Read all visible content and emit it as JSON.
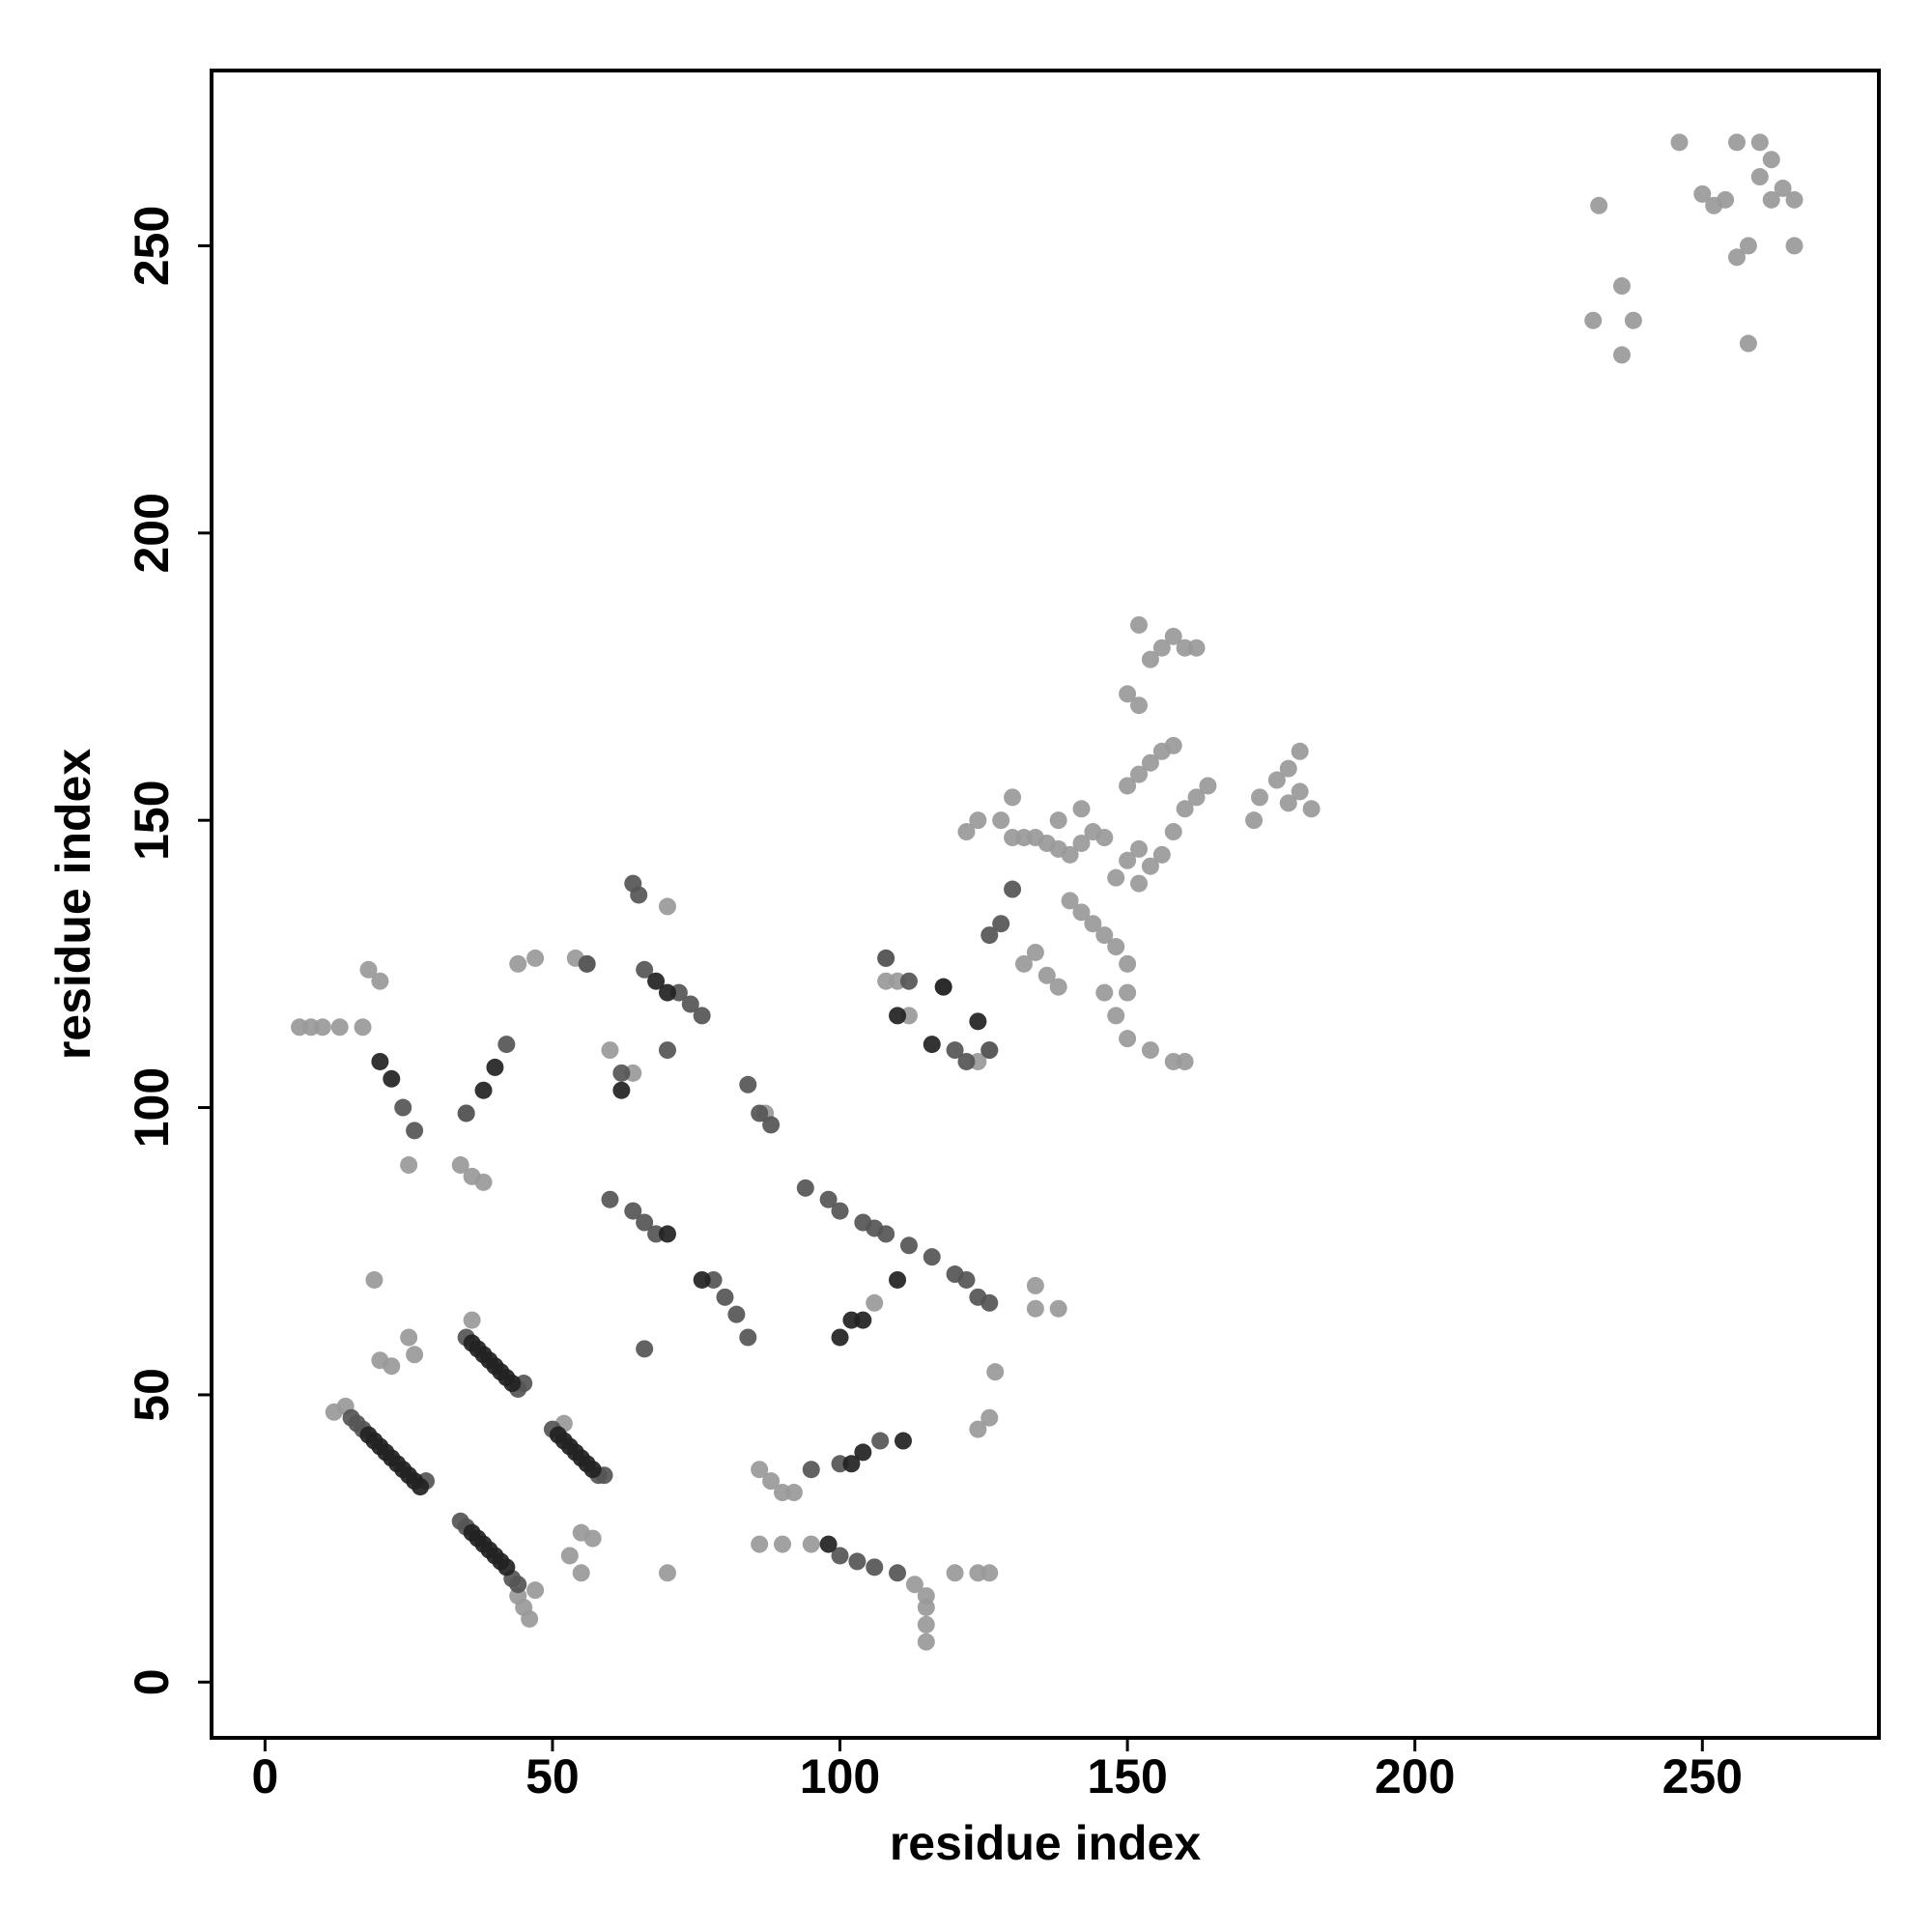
{
  "chart_data": {
    "type": "scatter",
    "x_label": "residue index",
    "y_label": "residue index",
    "xlim": [
      -9.3,
      280.7
    ],
    "ylim": [
      -9.7,
      280.5
    ],
    "xticks": [
      0,
      50,
      100,
      150,
      200,
      250
    ],
    "yticks": [
      0,
      50,
      100,
      150,
      200,
      250
    ],
    "series": [
      {
        "color": "#999999",
        "x": [
          12,
          14,
          44,
          45,
          46,
          47,
          52,
          6,
          8,
          10,
          13,
          17,
          18,
          20,
          25,
          35,
          36,
          38,
          34,
          44,
          47,
          54,
          56,
          60,
          64,
          70,
          25,
          20,
          22,
          26,
          19,
          36,
          53,
          55,
          57,
          55,
          70,
          108,
          106,
          86,
          88,
          90,
          92,
          86,
          90,
          87,
          95,
          113,
          115,
          115,
          115,
          115,
          120,
          124,
          126,
          127,
          124,
          126,
          134,
          134,
          138,
          108,
          110,
          112,
          118,
          126,
          124,
          122,
          124,
          128,
          130,
          132,
          134,
          136,
          138,
          140,
          142,
          144,
          146,
          132,
          134,
          136,
          138,
          140,
          142,
          144,
          146,
          148,
          146,
          148,
          150,
          150,
          152,
          154,
          156,
          158,
          160,
          162,
          164,
          150,
          152,
          154,
          156,
          158,
          150,
          152,
          154,
          156,
          158,
          160,
          162,
          152,
          148,
          150,
          152,
          130,
          138,
          142,
          150,
          154,
          158,
          160,
          172,
          173,
          176,
          178,
          180,
          182,
          178,
          180,
          231,
          232,
          236,
          236,
          238,
          246,
          250,
          252,
          254,
          256,
          258,
          260,
          262,
          262,
          264,
          266,
          266,
          258,
          256,
          260
        ],
        "y": [
          47,
          48,
          15,
          13,
          11,
          16,
          45,
          114,
          114,
          114,
          114,
          114,
          124,
          122,
          90,
          99,
          88,
          87,
          90,
          125,
          126,
          126,
          125,
          110,
          106,
          135,
          60,
          56,
          55,
          57,
          70,
          63,
          22,
          26,
          25,
          19,
          19,
          122,
          66,
          37,
          35,
          33,
          33,
          24,
          24,
          99,
          24,
          17,
          13,
          10,
          7,
          15,
          19,
          44,
          46,
          54,
          19,
          19,
          69,
          65,
          65,
          126,
          122,
          116,
          121,
          110,
          108,
          148,
          150,
          150,
          147,
          147,
          147,
          146,
          145,
          144,
          146,
          148,
          147,
          125,
          127,
          123,
          121,
          136,
          134,
          132,
          130,
          128,
          120,
          116,
          120,
          125,
          139,
          142,
          144,
          148,
          152,
          154,
          156,
          156,
          158,
          160,
          162,
          163,
          172,
          170,
          178,
          180,
          182,
          180,
          180,
          184,
          140,
          143,
          145,
          154,
          150,
          152,
          112,
          110,
          108,
          108,
          150,
          154,
          157,
          159,
          155,
          152,
          153,
          162,
          237,
          257,
          243,
          231,
          237,
          268,
          259,
          257,
          258,
          248,
          250,
          262,
          265,
          258,
          260,
          258,
          250,
          233,
          268,
          268
        ]
      },
      {
        "color": "#555555",
        "x": [
          15,
          16,
          17,
          28,
          34,
          35,
          43,
          44,
          35,
          44,
          45,
          50,
          58,
          59,
          66,
          72,
          74,
          76,
          84,
          86,
          88,
          94,
          98,
          100,
          104,
          106,
          108,
          112,
          116,
          120,
          122,
          124,
          126,
          60,
          64,
          66,
          68,
          78,
          80,
          82,
          84,
          95,
          100,
          107,
          100,
          103,
          106,
          110,
          24,
          26,
          35,
          42,
          56,
          66,
          108,
          112,
          120,
          122,
          126,
          64,
          65,
          70,
          62,
          130,
          128,
          126
        ],
        "y": [
          46,
          45,
          44,
          35,
          28,
          27,
          18,
          17,
          60,
          51,
          52,
          44,
          36,
          36,
          124,
          120,
          118,
          116,
          104,
          99,
          97,
          86,
          84,
          82,
          80,
          79,
          78,
          76,
          74,
          71,
          70,
          67,
          66,
          84,
          82,
          80,
          78,
          70,
          67,
          64,
          60,
          37,
          38,
          42,
          22,
          21,
          20,
          19,
          100,
          96,
          99,
          111,
          125,
          58,
          126,
          122,
          110,
          108,
          110,
          139,
          137,
          110,
          106,
          138,
          132,
          130
        ]
      },
      {
        "color": "#222222",
        "x": [
          18,
          19,
          20,
          21,
          22,
          23,
          24,
          25,
          26,
          27,
          36,
          37,
          38,
          39,
          40,
          41,
          42,
          36,
          37,
          38,
          39,
          40,
          41,
          42,
          43,
          51,
          52,
          53,
          54,
          55,
          56,
          57,
          110,
          116,
          118,
          124,
          100,
          102,
          104,
          110,
          20,
          22,
          40,
          38,
          70,
          68,
          62,
          70,
          76,
          102,
          104,
          111,
          98
        ],
        "y": [
          43,
          42,
          41,
          40,
          39,
          38,
          37,
          36,
          35,
          34,
          26,
          25,
          24,
          23,
          22,
          21,
          20,
          59,
          58,
          57,
          56,
          55,
          54,
          53,
          52,
          43,
          42,
          41,
          40,
          39,
          38,
          37,
          116,
          111,
          121,
          115,
          60,
          63,
          63,
          70,
          108,
          105,
          107,
          103,
          120,
          122,
          103,
          78,
          70,
          38,
          40,
          42,
          24
        ]
      }
    ]
  }
}
